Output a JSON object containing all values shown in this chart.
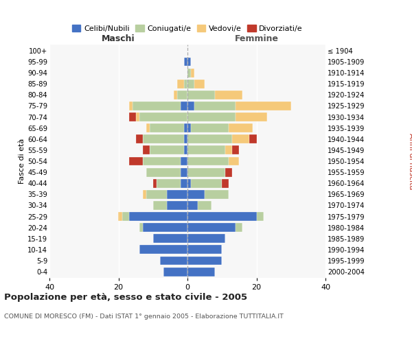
{
  "age_groups": [
    "0-4",
    "5-9",
    "10-14",
    "15-19",
    "20-24",
    "25-29",
    "30-34",
    "35-39",
    "40-44",
    "45-49",
    "50-54",
    "55-59",
    "60-64",
    "65-69",
    "70-74",
    "75-79",
    "80-84",
    "85-89",
    "90-94",
    "95-99",
    "100+"
  ],
  "birth_years": [
    "2000-2004",
    "1995-1999",
    "1990-1994",
    "1985-1989",
    "1980-1984",
    "1975-1979",
    "1970-1974",
    "1965-1969",
    "1960-1964",
    "1955-1959",
    "1950-1954",
    "1945-1949",
    "1940-1944",
    "1935-1939",
    "1930-1934",
    "1925-1929",
    "1920-1924",
    "1915-1919",
    "1910-1914",
    "1905-1909",
    "≤ 1904"
  ],
  "male_celibe": [
    7,
    8,
    14,
    10,
    13,
    17,
    6,
    6,
    2,
    2,
    2,
    1,
    1,
    1,
    0,
    2,
    0,
    0,
    0,
    1,
    0
  ],
  "male_coniugato": [
    0,
    0,
    0,
    0,
    1,
    2,
    4,
    6,
    7,
    10,
    11,
    10,
    12,
    10,
    14,
    14,
    3,
    1,
    0,
    0,
    0
  ],
  "male_vedovo": [
    0,
    0,
    0,
    0,
    0,
    1,
    0,
    1,
    0,
    0,
    0,
    0,
    0,
    1,
    1,
    1,
    1,
    2,
    0,
    0,
    0
  ],
  "male_divorziato": [
    0,
    0,
    0,
    0,
    0,
    0,
    0,
    0,
    1,
    0,
    4,
    2,
    2,
    0,
    2,
    0,
    0,
    0,
    0,
    0,
    0
  ],
  "female_nubile": [
    8,
    10,
    10,
    11,
    14,
    20,
    3,
    5,
    1,
    0,
    0,
    0,
    0,
    1,
    0,
    2,
    0,
    0,
    0,
    1,
    0
  ],
  "female_coniugata": [
    0,
    0,
    0,
    0,
    2,
    2,
    4,
    7,
    9,
    11,
    12,
    11,
    13,
    11,
    14,
    12,
    8,
    2,
    1,
    0,
    0
  ],
  "female_vedova": [
    0,
    0,
    0,
    0,
    0,
    0,
    0,
    0,
    0,
    0,
    3,
    2,
    5,
    7,
    9,
    16,
    8,
    3,
    1,
    0,
    0
  ],
  "female_divorziata": [
    0,
    0,
    0,
    0,
    0,
    0,
    0,
    0,
    2,
    2,
    0,
    2,
    2,
    0,
    0,
    0,
    0,
    0,
    0,
    0,
    0
  ],
  "color_celibe": "#4472c4",
  "color_coniugato": "#b8cfa0",
  "color_vedovo": "#f5c97a",
  "color_divorziato": "#c0392b",
  "title": "Popolazione per età, sesso e stato civile - 2005",
  "subtitle": "COMUNE DI MORESCO (FM) - Dati ISTAT 1° gennaio 2005 - Elaborazione TUTTITALIA.IT",
  "xlim": 40,
  "xlabel_left": "Maschi",
  "xlabel_right": "Femmine",
  "ylabel_left": "Fasce di età",
  "ylabel_right": "Anni di nascita",
  "legend_labels": [
    "Celibi/Nubili",
    "Coniugati/e",
    "Vedovi/e",
    "Divorziati/e"
  ]
}
